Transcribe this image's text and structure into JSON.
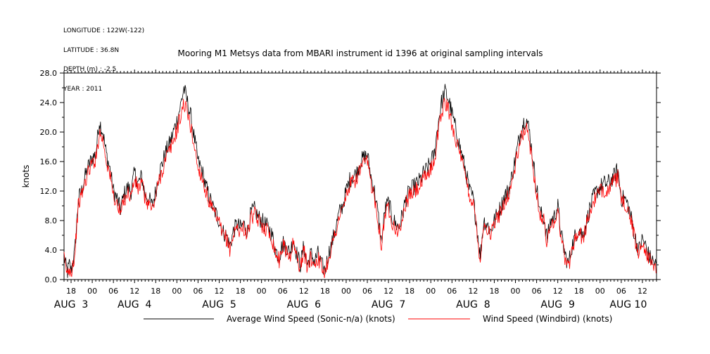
{
  "metadata": {
    "longitude": "LONGITUDE : 122W(-122)",
    "latitude": "LATITUDE : 36.8N",
    "depth": "DEPTH (m) : -2.5",
    "year": "YEAR : 2011"
  },
  "colors": {
    "series_avg": "#000000",
    "series_windbird": "#ff0000"
  },
  "chart_data": {
    "type": "line",
    "title": "Mooring M1 Metsys data from MBARI instrument id 1396 at original sampling intervals",
    "ylabel": "knots",
    "xlabel": "",
    "ylim": [
      0,
      28
    ],
    "yticks": [
      "0.0",
      "4.0",
      "8.0",
      "12.0",
      "16.0",
      "20.0",
      "24.0",
      "28.0"
    ],
    "xlim": [
      16,
      184
    ],
    "hour_ticks": [
      {
        "t": 18,
        "label": "18"
      },
      {
        "t": 24,
        "label": "00"
      },
      {
        "t": 30,
        "label": "06"
      },
      {
        "t": 36,
        "label": "12"
      },
      {
        "t": 42,
        "label": "18"
      },
      {
        "t": 48,
        "label": "00"
      },
      {
        "t": 54,
        "label": "06"
      },
      {
        "t": 60,
        "label": "12"
      },
      {
        "t": 66,
        "label": "18"
      },
      {
        "t": 72,
        "label": "00"
      },
      {
        "t": 78,
        "label": "06"
      },
      {
        "t": 84,
        "label": "12"
      },
      {
        "t": 90,
        "label": "18"
      },
      {
        "t": 96,
        "label": "00"
      },
      {
        "t": 102,
        "label": "06"
      },
      {
        "t": 108,
        "label": "12"
      },
      {
        "t": 114,
        "label": "18"
      },
      {
        "t": 120,
        "label": "00"
      },
      {
        "t": 126,
        "label": "06"
      },
      {
        "t": 132,
        "label": "12"
      },
      {
        "t": 138,
        "label": "18"
      },
      {
        "t": 144,
        "label": "00"
      },
      {
        "t": 150,
        "label": "06"
      },
      {
        "t": 156,
        "label": "12"
      },
      {
        "t": 162,
        "label": "18"
      },
      {
        "t": 168,
        "label": "00"
      },
      {
        "t": 174,
        "label": "06"
      },
      {
        "t": 180,
        "label": "12"
      }
    ],
    "day_labels": [
      {
        "t": 18,
        "label": "AUG  3"
      },
      {
        "t": 36,
        "label": "AUG  4"
      },
      {
        "t": 60,
        "label": "AUG  5"
      },
      {
        "t": 84,
        "label": "AUG  6"
      },
      {
        "t": 108,
        "label": "AUG  7"
      },
      {
        "t": 132,
        "label": "AUG  8"
      },
      {
        "t": 156,
        "label": "AUG  9"
      },
      {
        "t": 176,
        "label": "AUG 10"
      }
    ],
    "x_unit": "hours since 2011-08-02 00:00",
    "series": [
      {
        "name": "Average Wind Speed (Sonic-n/a) (knots)",
        "color": "#000000",
        "t": [
          16.0,
          16.5,
          17.0,
          17.5,
          18.0,
          18.5,
          19.0,
          19.5,
          20.0,
          20.5,
          21.0,
          22.0,
          23.0,
          24.0,
          25.0,
          26.0,
          27.0,
          28.0,
          29.0,
          30.0,
          31.0,
          32.0,
          33.0,
          34.0,
          35.0,
          36.0,
          37.0,
          38.0,
          39.0,
          40.0,
          41.0,
          42.0,
          43.0,
          44.0,
          45.0,
          46.0,
          47.0,
          48.0,
          49.0,
          50.0,
          51.0,
          52.0,
          53.0,
          54.0,
          55.0,
          56.0,
          57.0,
          58.0,
          59.0,
          60.0,
          61.0,
          62.0,
          63.0,
          64.0,
          65.0,
          66.0,
          67.0,
          68.0,
          69.0,
          70.0,
          71.0,
          72.0,
          73.0,
          74.0,
          75.0,
          76.0,
          77.0,
          78.0,
          79.0,
          80.0,
          81.0,
          82.0,
          83.0,
          84.0,
          85.0,
          86.0,
          87.0,
          88.0,
          89.0,
          90.0,
          91.0,
          92.0,
          93.0,
          94.0,
          95.0,
          96.0,
          97.0,
          98.0,
          99.0,
          100.0,
          101.0,
          102.0,
          103.0,
          104.0,
          105.0,
          106.0,
          107.0,
          108.0,
          109.0,
          110.0,
          111.0,
          112.0,
          113.0,
          114.0,
          115.0,
          116.0,
          117.0,
          118.0,
          119.0,
          120.0,
          121.0,
          122.0,
          123.0,
          124.0,
          125.0,
          126.0,
          127.0,
          128.0,
          129.0,
          130.0,
          131.0,
          132.0,
          133.0,
          134.0,
          135.0,
          136.0,
          137.0,
          138.0,
          139.0,
          140.0,
          141.0,
          142.0,
          143.0,
          144.0,
          145.0,
          146.0,
          147.0,
          148.0,
          149.0,
          150.0,
          151.0,
          152.0,
          153.0,
          154.0,
          155.0,
          156.0,
          157.0,
          158.0,
          159.0,
          160.0,
          161.0,
          162.0,
          163.0,
          164.0,
          165.0,
          166.0,
          167.0,
          168.0,
          169.0,
          170.0,
          171.0,
          172.0,
          173.0,
          174.0,
          175.0,
          176.0,
          177.0,
          178.0,
          179.0,
          180.0,
          181.0,
          182.0,
          183.0,
          184.0
        ],
        "values": [
          3.2,
          1.8,
          1.0,
          2.0,
          1.2,
          2.5,
          3.5,
          7.0,
          10.5,
          11.5,
          12.0,
          14.0,
          15.5,
          16.5,
          17.0,
          21.5,
          20.0,
          17.0,
          15.0,
          12.0,
          11.0,
          9.5,
          11.5,
          12.5,
          12.0,
          14.5,
          13.0,
          14.0,
          11.5,
          11.0,
          10.0,
          12.0,
          14.5,
          16.0,
          17.5,
          18.5,
          20.0,
          21.5,
          23.5,
          26.0,
          24.0,
          22.0,
          19.0,
          16.0,
          15.0,
          13.0,
          11.5,
          10.0,
          9.0,
          8.0,
          6.5,
          6.0,
          4.5,
          6.5,
          7.5,
          7.0,
          7.5,
          6.5,
          9.0,
          9.5,
          8.5,
          8.0,
          7.5,
          7.0,
          6.0,
          4.0,
          3.0,
          5.0,
          4.5,
          3.5,
          5.5,
          3.5,
          2.0,
          4.5,
          2.0,
          3.5,
          2.5,
          3.5,
          2.0,
          1.2,
          3.5,
          5.0,
          7.0,
          9.0,
          10.0,
          12.0,
          13.5,
          14.0,
          14.5,
          16.0,
          16.5,
          17.0,
          14.0,
          12.0,
          9.0,
          5.0,
          9.5,
          10.5,
          8.5,
          7.5,
          7.0,
          9.0,
          11.0,
          12.0,
          12.5,
          13.0,
          13.5,
          14.5,
          15.0,
          16.0,
          17.0,
          21.0,
          24.0,
          25.5,
          24.5,
          22.5,
          20.5,
          18.5,
          16.5,
          14.5,
          12.0,
          11.0,
          7.5,
          3.0,
          8.0,
          7.5,
          6.5,
          8.0,
          9.0,
          10.0,
          11.5,
          12.0,
          14.0,
          16.5,
          19.0,
          21.0,
          22.0,
          20.0,
          16.0,
          12.5,
          9.0,
          8.5,
          5.5,
          8.0,
          8.5,
          10.0,
          6.0,
          3.5,
          2.0,
          4.5,
          6.0,
          7.0,
          6.0,
          7.5,
          9.5,
          11.0,
          12.0,
          12.5,
          13.0,
          13.0,
          13.5,
          14.0,
          15.0,
          11.0,
          11.0,
          10.0,
          8.0,
          5.5,
          4.0,
          5.5,
          4.5,
          3.0,
          2.5,
          1.8
        ],
        "jitter": 1.2
      },
      {
        "name": "Wind Speed (Windbird) (knots)",
        "color": "#ff0000",
        "t": [
          16.0,
          16.5,
          17.0,
          17.5,
          18.0,
          18.5,
          19.0,
          19.5,
          20.0,
          20.5,
          21.0,
          22.0,
          23.0,
          24.0,
          25.0,
          26.0,
          27.0,
          28.0,
          29.0,
          30.0,
          31.0,
          32.0,
          33.0,
          34.0,
          35.0,
          36.0,
          37.0,
          38.0,
          39.0,
          40.0,
          41.0,
          42.0,
          43.0,
          44.0,
          45.0,
          46.0,
          47.0,
          48.0,
          49.0,
          50.0,
          51.0,
          52.0,
          53.0,
          54.0,
          55.0,
          56.0,
          57.0,
          58.0,
          59.0,
          60.0,
          61.0,
          62.0,
          63.0,
          64.0,
          65.0,
          66.0,
          67.0,
          68.0,
          69.0,
          70.0,
          71.0,
          72.0,
          73.0,
          74.0,
          75.0,
          76.0,
          77.0,
          78.0,
          79.0,
          80.0,
          81.0,
          82.0,
          83.0,
          84.0,
          85.0,
          86.0,
          87.0,
          88.0,
          89.0,
          90.0,
          91.0,
          92.0,
          93.0,
          94.0,
          95.0,
          96.0,
          97.0,
          98.0,
          99.0,
          100.0,
          101.0,
          102.0,
          103.0,
          104.0,
          105.0,
          106.0,
          107.0,
          108.0,
          109.0,
          110.0,
          111.0,
          112.0,
          113.0,
          114.0,
          115.0,
          116.0,
          117.0,
          118.0,
          119.0,
          120.0,
          121.0,
          122.0,
          123.0,
          124.0,
          125.0,
          126.0,
          127.0,
          128.0,
          129.0,
          130.0,
          131.0,
          132.0,
          133.0,
          134.0,
          135.0,
          136.0,
          137.0,
          138.0,
          139.0,
          140.0,
          141.0,
          142.0,
          143.0,
          144.0,
          145.0,
          146.0,
          147.0,
          148.0,
          149.0,
          150.0,
          151.0,
          152.0,
          153.0,
          154.0,
          155.0,
          156.0,
          157.0,
          158.0,
          159.0,
          160.0,
          161.0,
          162.0,
          163.0,
          164.0,
          165.0,
          166.0,
          167.0,
          168.0,
          169.0,
          170.0,
          171.0,
          172.0,
          173.0,
          174.0,
          175.0,
          176.0,
          177.0,
          178.0,
          179.0,
          180.0,
          181.0,
          182.0,
          183.0,
          184.0
        ],
        "values": [
          2.8,
          1.5,
          0.8,
          1.6,
          1.0,
          2.2,
          3.0,
          6.5,
          9.8,
          10.8,
          11.5,
          13.2,
          14.8,
          15.8,
          16.3,
          20.0,
          19.0,
          16.2,
          14.2,
          11.4,
          10.2,
          8.8,
          10.8,
          11.8,
          11.3,
          13.6,
          12.2,
          13.2,
          10.8,
          10.4,
          9.4,
          11.3,
          13.6,
          15.0,
          16.6,
          17.5,
          18.8,
          20.3,
          22.0,
          24.0,
          22.5,
          20.5,
          18.0,
          15.0,
          14.2,
          12.2,
          10.8,
          9.4,
          8.5,
          7.5,
          6.0,
          5.6,
          4.1,
          6.0,
          7.1,
          6.6,
          7.0,
          6.0,
          8.4,
          8.8,
          8.0,
          7.5,
          7.0,
          6.5,
          5.5,
          3.6,
          2.6,
          4.6,
          4.0,
          3.1,
          5.0,
          3.0,
          1.6,
          4.0,
          1.6,
          3.0,
          2.1,
          3.0,
          1.6,
          0.9,
          3.0,
          4.6,
          6.5,
          8.4,
          9.4,
          11.3,
          12.7,
          13.2,
          13.7,
          15.0,
          15.5,
          16.0,
          13.2,
          11.3,
          8.4,
          4.6,
          8.8,
          9.8,
          8.0,
          7.0,
          6.5,
          8.4,
          10.4,
          11.3,
          11.8,
          12.2,
          12.7,
          13.6,
          14.2,
          15.0,
          16.0,
          19.8,
          22.5,
          24.0,
          23.0,
          21.0,
          19.3,
          17.3,
          15.5,
          13.6,
          11.3,
          10.4,
          7.0,
          2.6,
          7.5,
          7.0,
          6.0,
          7.5,
          8.4,
          9.4,
          10.8,
          11.3,
          13.2,
          15.5,
          17.8,
          19.8,
          20.5,
          18.8,
          15.0,
          11.8,
          8.4,
          8.0,
          5.0,
          7.5,
          8.0,
          9.4,
          5.5,
          3.1,
          1.6,
          4.1,
          5.6,
          6.5,
          5.6,
          7.0,
          8.8,
          10.4,
          11.3,
          11.8,
          12.2,
          12.2,
          12.7,
          13.2,
          14.0,
          10.4,
          10.4,
          9.4,
          7.5,
          5.0,
          3.6,
          5.0,
          4.0,
          2.6,
          2.1,
          1.4
        ],
        "jitter": 1.1
      }
    ],
    "legend": [
      {
        "label": "Average Wind Speed (Sonic-n/a) (knots)",
        "color": "#000000"
      },
      {
        "label": "Wind Speed (Windbird) (knots)",
        "color": "#ff0000"
      }
    ],
    "grid": false,
    "legend_position": "bottom"
  }
}
